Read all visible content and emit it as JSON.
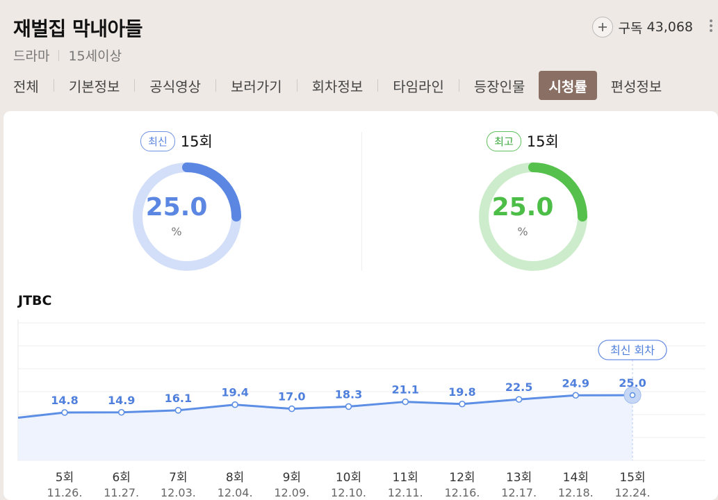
{
  "header": {
    "title": "재벌집 막내아들",
    "genre": "드라마",
    "rating": "15세이상",
    "subscribe_label": "구독",
    "subscribe_count": "43,068"
  },
  "tabs": [
    {
      "label": "전체"
    },
    {
      "label": "기본정보"
    },
    {
      "label": "공식영상"
    },
    {
      "label": "보러가기"
    },
    {
      "label": "회차정보"
    },
    {
      "label": "타임라인"
    },
    {
      "label": "등장인물"
    },
    {
      "label": "시청률",
      "active": true
    },
    {
      "label": "편성정보"
    }
  ],
  "gauges": {
    "latest": {
      "badge": "최신",
      "episode": "15회",
      "value": "25.0",
      "unit": "%",
      "fraction": 0.25,
      "color": "#5b87e2",
      "track": "#d3dff8"
    },
    "highest": {
      "badge": "최고",
      "episode": "15회",
      "value": "25.0",
      "unit": "%",
      "fraction": 0.25,
      "color": "#55c04c",
      "track": "#cdeccb"
    }
  },
  "channel": "JTBC",
  "latest_tooltip": "최신 회차",
  "chart_data": {
    "type": "line",
    "x": [
      "5회",
      "6회",
      "7회",
      "8회",
      "9회",
      "10회",
      "11회",
      "12회",
      "13회",
      "14회",
      "15회"
    ],
    "dates": [
      "11.26.",
      "11.27.",
      "12.03.",
      "12.04.",
      "12.09.",
      "12.10.",
      "12.11.",
      "12.16.",
      "12.17.",
      "12.18.",
      "12.24."
    ],
    "values": [
      14.8,
      14.9,
      16.1,
      19.4,
      17.0,
      18.3,
      21.1,
      19.8,
      22.5,
      24.9,
      25.0
    ],
    "value_labels": [
      "14.8",
      "14.9",
      "16.1",
      "19.4",
      "17.0",
      "18.3",
      "21.1",
      "19.8",
      "22.5",
      "24.9",
      "25.0"
    ],
    "previous_value": 13.8,
    "line_color": "#5b8ee4",
    "area_color": "#eef3fd",
    "label_color": "#4f7fdc",
    "grid": true
  }
}
